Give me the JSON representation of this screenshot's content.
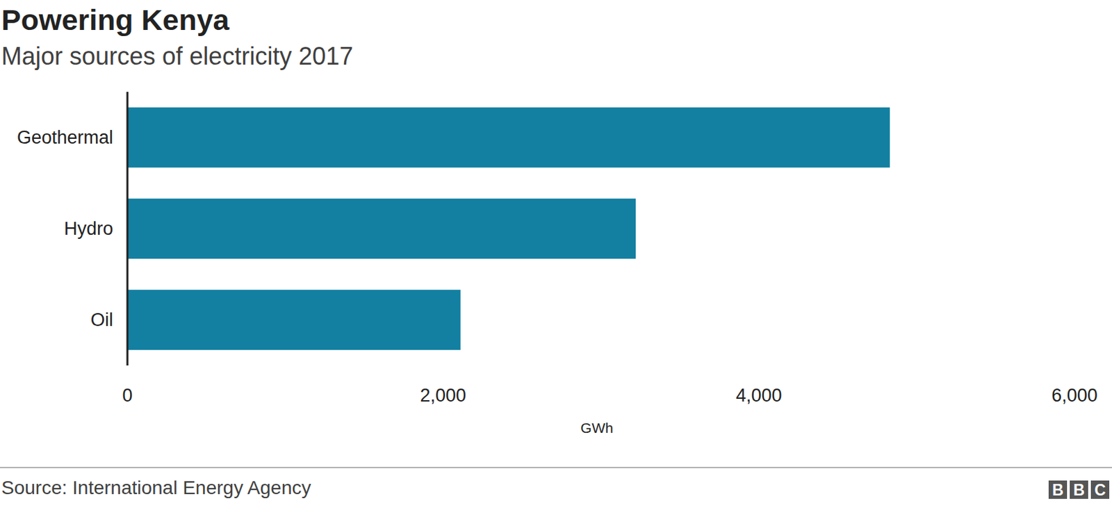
{
  "chart_data": {
    "type": "bar",
    "orientation": "horizontal",
    "title": "Powering Kenya",
    "subtitle": "Major sources of electricity 2017",
    "categories": [
      "Geothermal",
      "Hydro",
      "Oil"
    ],
    "values": [
      4830,
      3220,
      2110
    ],
    "color": "#1380a1",
    "xlim": [
      0,
      6000
    ],
    "xticks": [
      0,
      {
        "value": 2000,
        "label": "2,000"
      },
      {
        "value": 4000,
        "label": "4,000"
      },
      {
        "value": 6000,
        "label": "6,000"
      }
    ],
    "x_label": "GWh",
    "grid": false,
    "source": "Source: International Energy Agency",
    "logo": "BBC"
  }
}
